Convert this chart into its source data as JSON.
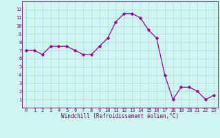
{
  "x": [
    0,
    1,
    2,
    3,
    4,
    5,
    6,
    7,
    8,
    9,
    10,
    11,
    12,
    13,
    14,
    15,
    16,
    17,
    18,
    19,
    20,
    21,
    22,
    23
  ],
  "y": [
    7.0,
    7.0,
    6.5,
    7.5,
    7.5,
    7.5,
    7.0,
    6.5,
    6.5,
    7.5,
    8.5,
    10.5,
    11.5,
    11.5,
    11.0,
    9.5,
    8.5,
    4.0,
    1.0,
    2.5,
    2.5,
    2.0,
    1.0,
    1.5
  ],
  "line_color": "#990099",
  "marker": "D",
  "marker_size": 1.8,
  "line_width": 0.9,
  "bg_color": "#cef5f0",
  "grid_color": "#aadddd",
  "xlabel": "Windchill (Refroidissement éolien,°C)",
  "xlabel_color": "#660066",
  "tick_color": "#660066",
  "ylim": [
    0,
    13
  ],
  "xlim": [
    -0.5,
    23.5
  ],
  "yticks": [
    1,
    2,
    3,
    4,
    5,
    6,
    7,
    8,
    9,
    10,
    11,
    12
  ],
  "xticks": [
    0,
    1,
    2,
    3,
    4,
    5,
    6,
    7,
    8,
    9,
    10,
    11,
    12,
    13,
    14,
    15,
    16,
    17,
    18,
    19,
    20,
    21,
    22,
    23
  ],
  "spine_color": "#660066",
  "tick_fontsize": 5.0,
  "xlabel_fontsize": 5.5
}
